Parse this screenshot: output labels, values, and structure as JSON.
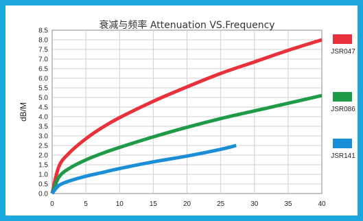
{
  "chart_data": {
    "type": "line",
    "title": "衰减与频率 Attenuation VS.Frequency",
    "xlabel": "",
    "ylabel": "dB/M",
    "xlim": [
      0,
      40
    ],
    "ylim": [
      0,
      8.5
    ],
    "x_ticks": [
      "0",
      "5",
      "10",
      "15",
      "20",
      "25",
      "30",
      "35",
      "40"
    ],
    "y_ticks": [
      "0.0",
      "0.5",
      "1.0",
      "1.5",
      "2.0",
      "2.5",
      "3.0",
      "3.5",
      "4.0",
      "4.5",
      "5.0",
      "5.5",
      "6.0",
      "6.5",
      "7.0",
      "7.5",
      "8.0",
      "8.5"
    ],
    "grid": true,
    "legend_position": "right",
    "series": [
      {
        "name": "JSR047",
        "color": "#e8313a",
        "x": [
          0,
          1,
          2.5,
          5,
          7.5,
          10,
          15,
          20,
          25,
          30,
          35,
          40
        ],
        "y": [
          0,
          1.4,
          2.1,
          2.85,
          3.45,
          3.95,
          4.8,
          5.55,
          6.25,
          6.85,
          7.45,
          8.0
        ]
      },
      {
        "name": "JSR086",
        "color": "#1f9a47",
        "x": [
          0,
          1,
          2.5,
          5,
          7.5,
          10,
          15,
          20,
          25,
          30,
          35,
          40
        ],
        "y": [
          0,
          0.85,
          1.3,
          1.75,
          2.1,
          2.4,
          2.95,
          3.45,
          3.9,
          4.3,
          4.7,
          5.1
        ]
      },
      {
        "name": "JSR141",
        "color": "#1a8fd8",
        "x": [
          0,
          1,
          2.5,
          5,
          7.5,
          10,
          15,
          20,
          25,
          27.3
        ],
        "y": [
          0,
          0.42,
          0.65,
          0.9,
          1.1,
          1.3,
          1.65,
          1.95,
          2.3,
          2.5
        ]
      }
    ]
  }
}
